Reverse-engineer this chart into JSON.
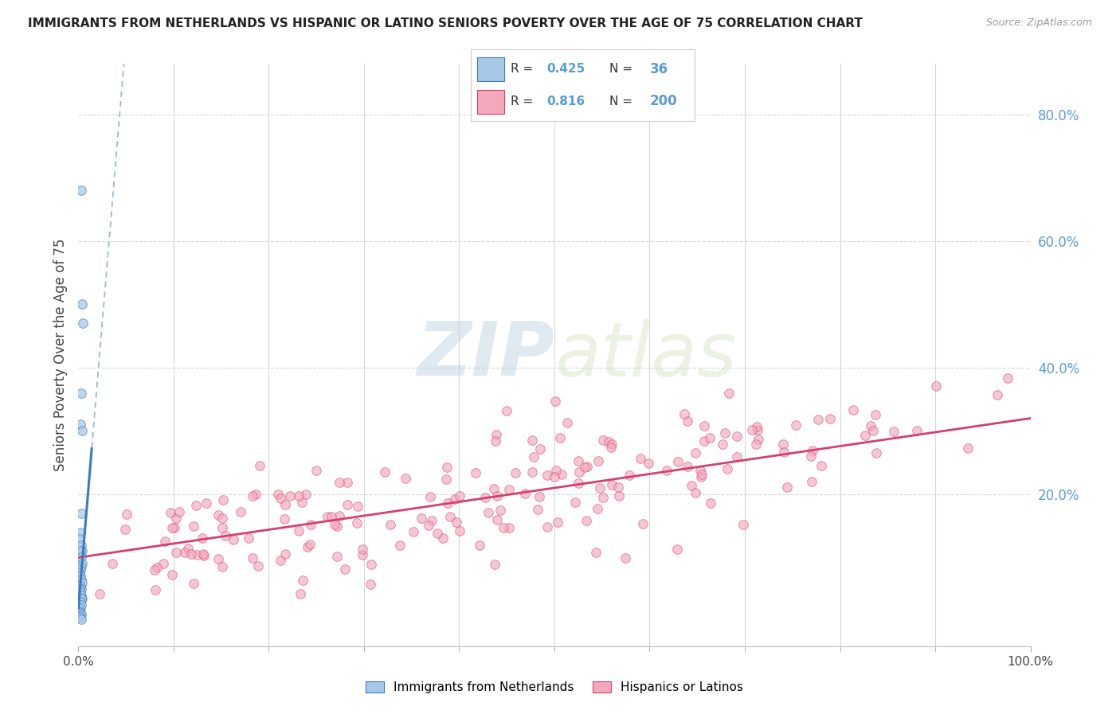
{
  "title": "IMMIGRANTS FROM NETHERLANDS VS HISPANIC OR LATINO SENIORS POVERTY OVER THE AGE OF 75 CORRELATION CHART",
  "source": "Source: ZipAtlas.com",
  "ylabel": "Seniors Poverty Over the Age of 75",
  "x_min": 0.0,
  "x_max": 1.0,
  "y_min": -0.04,
  "y_max": 0.88,
  "y_ticks_right": [
    0.2,
    0.4,
    0.6,
    0.8
  ],
  "y_tick_labels_right": [
    "20.0%",
    "40.0%",
    "60.0%",
    "80.0%"
  ],
  "color_blue": "#a8c8e8",
  "color_pink": "#f4a8bc",
  "color_blue_line": "#3a7abf",
  "color_pink_line": "#d44070",
  "color_blue_dashed": "#90bcd8",
  "R_blue": 0.425,
  "N_blue": 36,
  "R_pink": 0.816,
  "N_pink": 200,
  "watermark_zip": "ZIP",
  "watermark_atlas": "atlas",
  "background_color": "#ffffff",
  "grid_color": "#d8d8d8",
  "pink_slope": 0.22,
  "pink_intercept": 0.1,
  "blue_slope": 18.0,
  "blue_intercept": 0.02,
  "blue_x": [
    0.003,
    0.004,
    0.005,
    0.003,
    0.002,
    0.004,
    0.003,
    0.002,
    0.001,
    0.003,
    0.004,
    0.002,
    0.003,
    0.004,
    0.003,
    0.002,
    0.001,
    0.002,
    0.003,
    0.004,
    0.002,
    0.003,
    0.001,
    0.002,
    0.003,
    0.004,
    0.003,
    0.002,
    0.003,
    0.002,
    0.001,
    0.002,
    0.003,
    0.002,
    0.001,
    0.003
  ],
  "blue_y": [
    0.68,
    0.5,
    0.47,
    0.36,
    0.31,
    0.3,
    0.17,
    0.14,
    0.13,
    0.12,
    0.11,
    0.11,
    0.1,
    0.09,
    0.085,
    0.08,
    0.075,
    0.07,
    0.065,
    0.06,
    0.055,
    0.05,
    0.05,
    0.045,
    0.04,
    0.035,
    0.035,
    0.03,
    0.025,
    0.02,
    0.015,
    0.012,
    0.01,
    0.008,
    0.005,
    0.003
  ]
}
